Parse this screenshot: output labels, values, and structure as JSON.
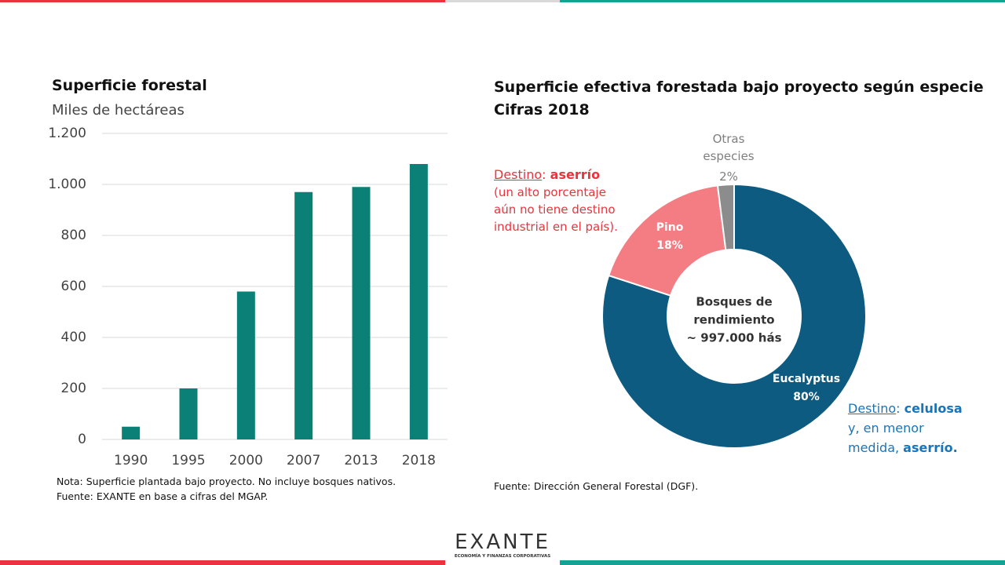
{
  "chart_data": [
    {
      "type": "bar",
      "title": "Superficie forestal",
      "subtitle": "Miles de hectáreas",
      "categories": [
        "1990",
        "1995",
        "2000",
        "2007",
        "2013",
        "2018"
      ],
      "values": [
        50,
        200,
        580,
        970,
        990,
        1080
      ],
      "color": "#0b8077",
      "ylim": [
        0,
        1200
      ],
      "yticks": [
        0,
        200,
        400,
        600,
        800,
        {
          "value": 1000,
          "label": "1.000"
        },
        {
          "value": 1200,
          "label": "1.200"
        }
      ],
      "grid": true,
      "notes": [
        "Nota: Superficie plantada bajo proyecto. No incluye bosques nativos.",
        "Fuente: EXANTE en base a cifras del MGAP."
      ]
    },
    {
      "type": "pie",
      "title": "Superficie efectiva forestada bajo proyecto según especie",
      "subtitle": "Cifras 2018",
      "categories": [
        "Eucalyptus",
        "Pino",
        "Otras especies"
      ],
      "values": [
        80,
        18,
        2
      ],
      "value_labels": [
        "80%",
        "18%",
        "2%"
      ],
      "colors": [
        "#0e5b81",
        "#f47d84",
        "#8c8c8c"
      ],
      "center_label": [
        "Bosques de",
        "rendimiento",
        "~ 997.000 hás"
      ],
      "annotations": [
        {
          "parts": [
            "Destino",
            ":",
            "aserrío",
            "(un alto porcentaje aún no tiene destino industrial en el país)."
          ]
        },
        {
          "parts": [
            "Destino",
            ":",
            "celulosa",
            "y, en menor medida,",
            "aserrío."
          ]
        }
      ],
      "notes": [
        "Fuente: Dirección General Forestal (DGF)."
      ]
    }
  ],
  "logo": {
    "name": "EXANTE",
    "tagline": "ECONOMÍA Y FINANZAS CORPORATIVAS"
  }
}
